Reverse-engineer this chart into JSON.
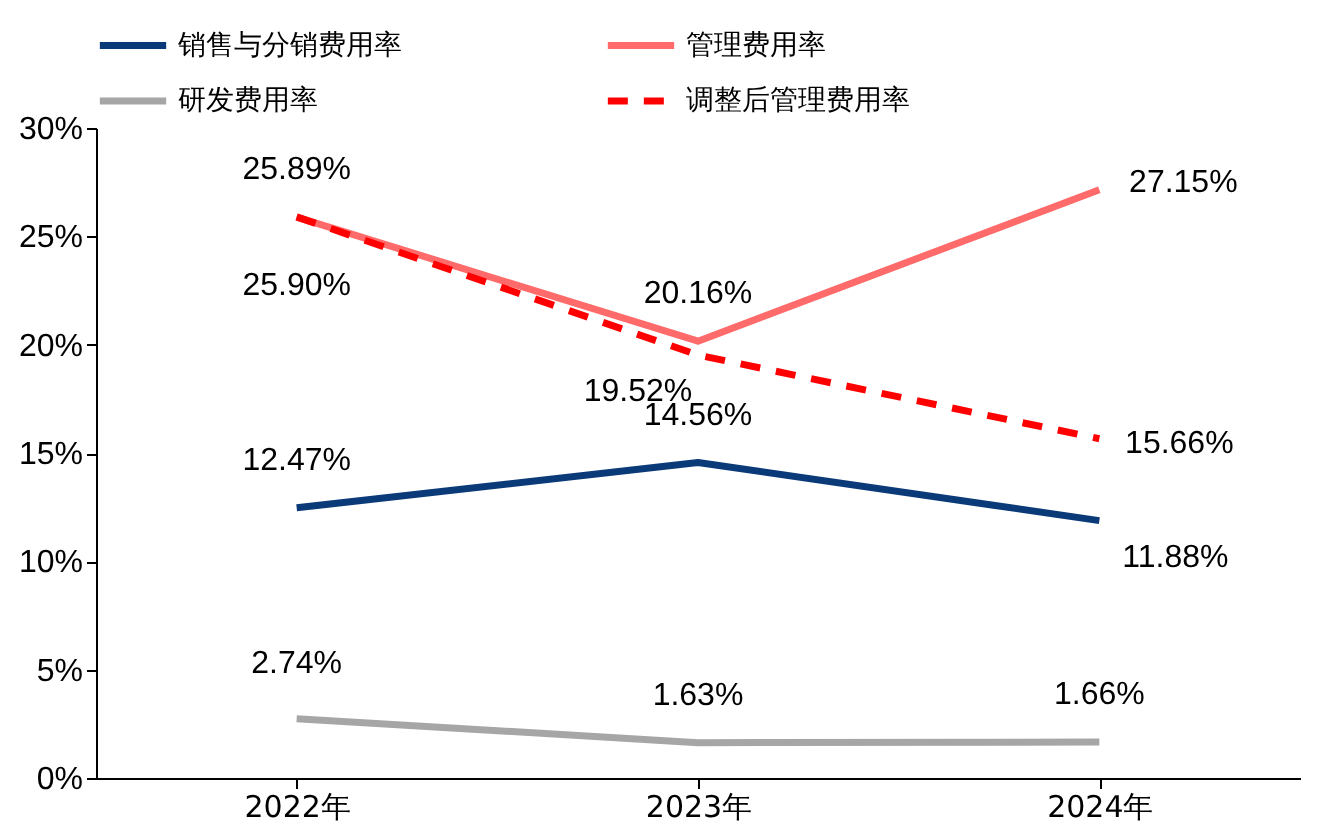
{
  "chart_data": {
    "type": "line",
    "categories": [
      "2022年",
      "2023年",
      "2024年"
    ],
    "series": [
      {
        "name": "销售与分销费用率",
        "color": "#0b3a78",
        "line_style": "solid",
        "values": [
          12.47,
          14.56,
          11.88
        ],
        "value_labels": [
          "12.47%",
          "14.56%",
          "11.88%"
        ]
      },
      {
        "name": "管理费用率",
        "color": "#ff6b6b",
        "line_style": "solid",
        "values": [
          25.89,
          20.16,
          27.15
        ],
        "value_labels": [
          "25.89%",
          "20.16%",
          "27.15%"
        ]
      },
      {
        "name": "研发费用率",
        "color": "#a6a6a6",
        "line_style": "solid",
        "values": [
          2.74,
          1.63,
          1.66
        ],
        "value_labels": [
          "2.74%",
          "1.63%",
          "1.66%"
        ]
      },
      {
        "name": "调整后管理费用率",
        "color": "#ff0000",
        "line_style": "dashed",
        "values": [
          25.9,
          19.52,
          15.66
        ],
        "value_labels": [
          "25.90%",
          "19.52%",
          "15.66%"
        ]
      }
    ],
    "ylim": [
      0,
      30
    ],
    "yticks": [
      {
        "value": 0,
        "label": "0%"
      },
      {
        "value": 5,
        "label": "5%"
      },
      {
        "value": 10,
        "label": "10%"
      },
      {
        "value": 15,
        "label": "15%"
      },
      {
        "value": 20,
        "label": "20%"
      },
      {
        "value": 25,
        "label": "25%"
      },
      {
        "value": 30,
        "label": "30%"
      }
    ],
    "grid": false,
    "legend": "top",
    "marker": "none"
  }
}
